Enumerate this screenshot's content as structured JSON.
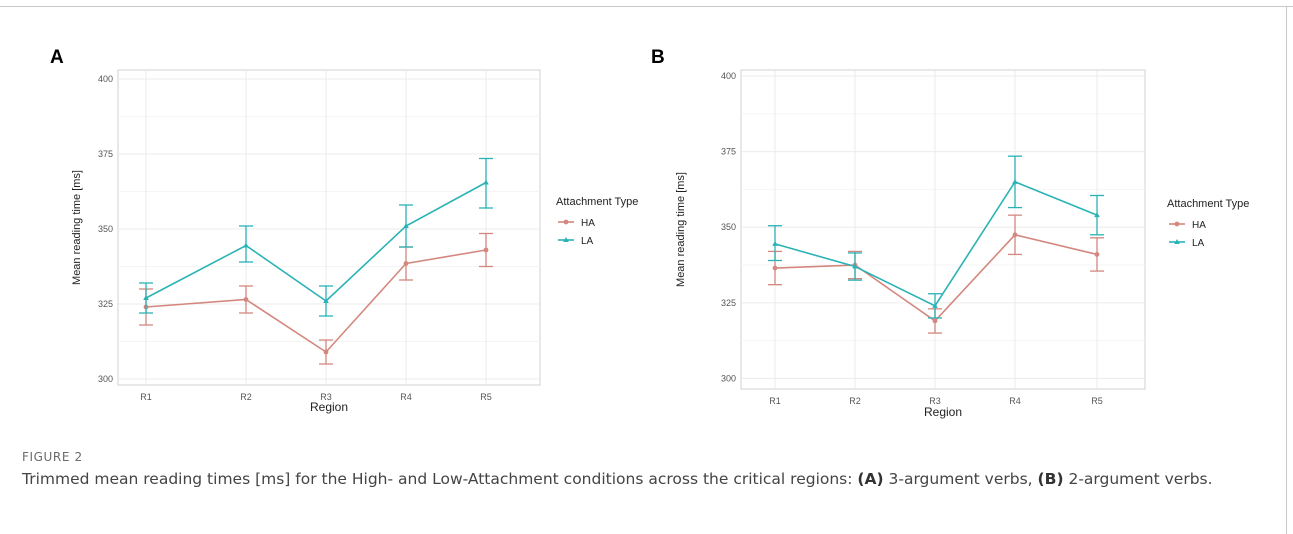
{
  "figure": {
    "label": "FIGURE 2",
    "caption_parts": [
      {
        "text": "Trimmed mean reading times [ms] for the High- and Low-Attachment conditions across the critical regions: ",
        "bold": false
      },
      {
        "text": "(A)",
        "bold": true
      },
      {
        "text": " 3-argument verbs, ",
        "bold": false
      },
      {
        "text": "(B)",
        "bold": true
      },
      {
        "text": " 2-argument verbs.",
        "bold": false
      }
    ]
  },
  "colors": {
    "HA": "#d4877f",
    "LA": "#2ab3b6",
    "grid": "#ebebeb",
    "axis": "#d0d0d0"
  },
  "chart_data": [
    {
      "panel": "A",
      "type": "line",
      "xlabel": "Region",
      "ylabel": "Mean reading time [ms]",
      "categories": [
        "R1",
        "R2",
        "R3",
        "R4",
        "R5"
      ],
      "yticks": [
        300,
        325,
        350,
        375,
        400
      ],
      "ylim": [
        298,
        403
      ],
      "grid": true,
      "legend": {
        "title": "Attachment Type",
        "placement": "right"
      },
      "series": [
        {
          "name": "HA",
          "values": [
            324,
            326.5,
            309,
            338.5,
            343
          ],
          "error_low": [
            318,
            322,
            305,
            333,
            337.5
          ],
          "error_high": [
            330,
            331,
            313,
            344,
            348.5
          ]
        },
        {
          "name": "LA",
          "values": [
            327,
            344.5,
            326,
            351,
            365.5
          ],
          "error_low": [
            322,
            339,
            321,
            344,
            357
          ],
          "error_high": [
            332,
            351,
            331,
            358,
            373.5
          ]
        }
      ]
    },
    {
      "panel": "B",
      "type": "line",
      "xlabel": "Region",
      "ylabel": "Mean reading time [ms]",
      "categories": [
        "R1",
        "R2",
        "R3",
        "R4",
        "R5"
      ],
      "yticks": [
        300,
        325,
        350,
        375,
        400
      ],
      "ylim": [
        296.5,
        402
      ],
      "grid": true,
      "legend": {
        "title": "Attachment Type",
        "placement": "right"
      },
      "series": [
        {
          "name": "HA",
          "values": [
            336.5,
            337.5,
            319,
            347.5,
            341
          ],
          "error_low": [
            331,
            333,
            315,
            341,
            335.5
          ],
          "error_high": [
            342,
            342,
            323,
            354,
            346.5
          ]
        },
        {
          "name": "LA",
          "values": [
            344.5,
            337,
            324,
            365,
            354
          ],
          "error_low": [
            339,
            332.5,
            320,
            356.5,
            347.5
          ],
          "error_high": [
            350.5,
            341.5,
            328,
            373.5,
            360.5
          ]
        }
      ]
    }
  ]
}
